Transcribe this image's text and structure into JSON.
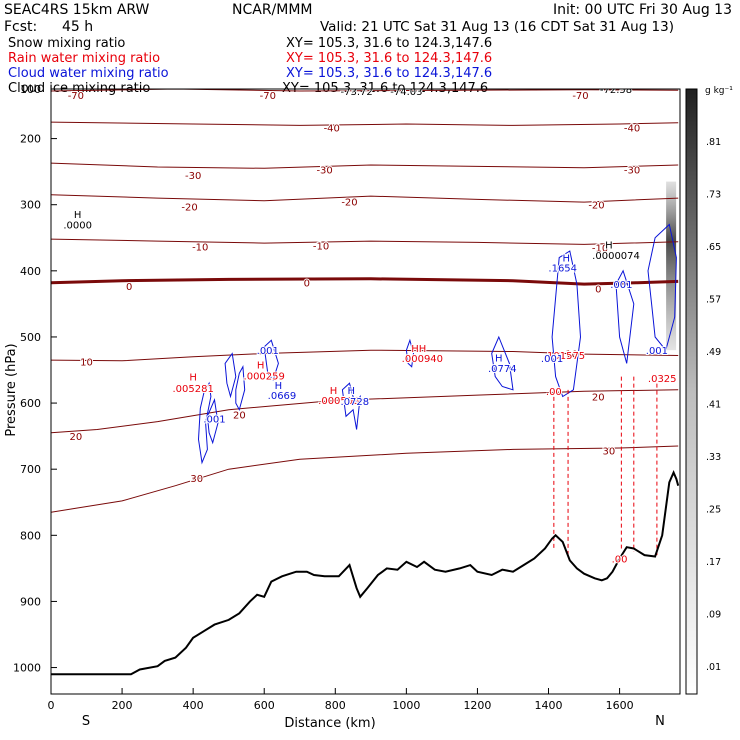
{
  "header": {
    "title": "SEAC4RS 15km ARW",
    "center": "NCAR/MMM",
    "init": "Init: 00 UTC Fri 30 Aug 13",
    "fcst_label": "Fcst:",
    "fcst_value": "45 h",
    "valid": "Valid: 21 UTC Sat 31 Aug 13 (16 CDT Sat 31 Aug 13)",
    "fields": [
      {
        "name": "Snow mixing ratio",
        "xy": "XY= 105.3, 31.6 to 124.3,147.6",
        "color": "#000000"
      },
      {
        "name": "Rain water mixing ratio",
        "xy": "XY= 105.3, 31.6 to 124.3,147.6",
        "color": "#e8000b"
      },
      {
        "name": "Cloud water mixing ratio",
        "xy": "XY= 105.3, 31.6 to 124.3,147.6",
        "color": "#0a14d8"
      },
      {
        "name": "Cloud ice mixing ratio",
        "xy": "XY= 105.3, 31.6 to 124.3,147.6",
        "color": "#000000"
      }
    ]
  },
  "chart_data": {
    "type": "contour",
    "xlabel": "Distance (km)",
    "ylabel": "Pressure (hPa)",
    "xlim": [
      0,
      1770
    ],
    "ylim": [
      1040,
      125
    ],
    "xticks": [
      0,
      200,
      400,
      600,
      800,
      1000,
      1200,
      1400,
      1600
    ],
    "yticks": [
      100,
      200,
      300,
      400,
      500,
      600,
      700,
      800,
      900,
      1000
    ],
    "end_labels": {
      "left": "S",
      "right": "N"
    },
    "colorbar": {
      "unit": "g kg⁻¹",
      "ticks": [
        ".81",
        ".73",
        ".65",
        ".57",
        ".49",
        ".41",
        ".33",
        ".25",
        ".17",
        ".09",
        ".01"
      ]
    },
    "terrain": [
      [
        0,
        1010
      ],
      [
        225,
        1010
      ],
      [
        250,
        1003
      ],
      [
        300,
        998
      ],
      [
        320,
        990
      ],
      [
        350,
        985
      ],
      [
        380,
        970
      ],
      [
        400,
        955
      ],
      [
        430,
        945
      ],
      [
        460,
        935
      ],
      [
        500,
        928
      ],
      [
        530,
        918
      ],
      [
        560,
        900
      ],
      [
        580,
        890
      ],
      [
        600,
        893
      ],
      [
        620,
        870
      ],
      [
        650,
        862
      ],
      [
        690,
        855
      ],
      [
        720,
        855
      ],
      [
        740,
        860
      ],
      [
        770,
        862
      ],
      [
        810,
        862
      ],
      [
        840,
        845
      ],
      [
        860,
        880
      ],
      [
        870,
        893
      ],
      [
        890,
        880
      ],
      [
        920,
        860
      ],
      [
        945,
        850
      ],
      [
        975,
        852
      ],
      [
        1000,
        840
      ],
      [
        1030,
        848
      ],
      [
        1050,
        840
      ],
      [
        1080,
        852
      ],
      [
        1110,
        855
      ],
      [
        1150,
        850
      ],
      [
        1180,
        845
      ],
      [
        1200,
        855
      ],
      [
        1240,
        860
      ],
      [
        1270,
        852
      ],
      [
        1300,
        855
      ],
      [
        1330,
        845
      ],
      [
        1360,
        835
      ],
      [
        1390,
        820
      ],
      [
        1410,
        805
      ],
      [
        1420,
        800
      ],
      [
        1440,
        810
      ],
      [
        1460,
        838
      ],
      [
        1480,
        850
      ],
      [
        1500,
        858
      ],
      [
        1530,
        865
      ],
      [
        1550,
        868
      ],
      [
        1565,
        865
      ],
      [
        1580,
        855
      ],
      [
        1600,
        835
      ],
      [
        1620,
        818
      ],
      [
        1640,
        820
      ],
      [
        1670,
        830
      ],
      [
        1700,
        832
      ],
      [
        1720,
        800
      ],
      [
        1740,
        720
      ],
      [
        1752,
        705
      ],
      [
        1760,
        715
      ],
      [
        1765,
        725
      ]
    ],
    "isotherms": [
      {
        "label": "-70",
        "pts": [
          [
            0,
            128
          ],
          [
            350,
            125
          ],
          [
            700,
            128
          ],
          [
            1150,
            127
          ],
          [
            1500,
            126
          ],
          [
            1765,
            127
          ]
        ]
      },
      {
        "label": "-40",
        "pts": [
          [
            0,
            175
          ],
          [
            400,
            178
          ],
          [
            700,
            180
          ],
          [
            1000,
            178
          ],
          [
            1300,
            180
          ],
          [
            1600,
            178
          ],
          [
            1765,
            176
          ]
        ]
      },
      {
        "label": "-30",
        "pts": [
          [
            0,
            237
          ],
          [
            300,
            243
          ],
          [
            600,
            245
          ],
          [
            900,
            240
          ],
          [
            1200,
            242
          ],
          [
            1500,
            244
          ],
          [
            1765,
            240
          ]
        ]
      },
      {
        "label": "-20",
        "pts": [
          [
            0,
            285
          ],
          [
            300,
            290
          ],
          [
            600,
            294
          ],
          [
            900,
            287
          ],
          [
            1200,
            292
          ],
          [
            1500,
            296
          ],
          [
            1765,
            290
          ]
        ]
      },
      {
        "label": "-10",
        "pts": [
          [
            0,
            352
          ],
          [
            300,
            355
          ],
          [
            600,
            358
          ],
          [
            900,
            355
          ],
          [
            1200,
            357
          ],
          [
            1500,
            360
          ],
          [
            1765,
            356
          ]
        ]
      },
      {
        "label": "0",
        "pts": [
          [
            0,
            418
          ],
          [
            200,
            415
          ],
          [
            500,
            413
          ],
          [
            900,
            412
          ],
          [
            1300,
            415
          ],
          [
            1500,
            420
          ],
          [
            1650,
            418
          ],
          [
            1765,
            416
          ]
        ],
        "bold": true
      },
      {
        "label": "10",
        "pts": [
          [
            0,
            535
          ],
          [
            200,
            536
          ],
          [
            400,
            530
          ],
          [
            600,
            525
          ],
          [
            900,
            520
          ],
          [
            1300,
            522
          ],
          [
            1500,
            526
          ],
          [
            1765,
            528
          ]
        ]
      },
      {
        "label": "20",
        "pts": [
          [
            0,
            645
          ],
          [
            130,
            640
          ],
          [
            300,
            628
          ],
          [
            500,
            610
          ],
          [
            800,
            596
          ],
          [
            1200,
            588
          ],
          [
            1500,
            582
          ],
          [
            1765,
            580
          ]
        ]
      },
      {
        "label": "30",
        "pts": [
          [
            0,
            765
          ],
          [
            200,
            748
          ],
          [
            350,
            725
          ],
          [
            500,
            700
          ],
          [
            700,
            685
          ],
          [
            1000,
            676
          ],
          [
            1300,
            670
          ],
          [
            1600,
            668
          ],
          [
            1765,
            665
          ]
        ]
      }
    ],
    "labels": [
      {
        "text": "-70",
        "x": 70,
        "p": 134,
        "color": "#8b0000"
      },
      {
        "text": "-70",
        "x": 610,
        "p": 134,
        "color": "#8b0000"
      },
      {
        "text": "-70",
        "x": 1490,
        "p": 134,
        "color": "#8b0000"
      },
      {
        "text": "-73.72",
        "x": 860,
        "p": 128,
        "color": "#000000"
      },
      {
        "text": "-74.03",
        "x": 1000,
        "p": 128,
        "color": "#000000"
      },
      {
        "text": "-72.58",
        "x": 1590,
        "p": 125,
        "color": "#000000"
      },
      {
        "text": "-40",
        "x": 790,
        "p": 183,
        "color": "#8b0000"
      },
      {
        "text": "-40",
        "x": 1635,
        "p": 183,
        "color": "#8b0000"
      },
      {
        "text": "-30",
        "x": 400,
        "p": 255,
        "color": "#8b0000"
      },
      {
        "text": "-30",
        "x": 770,
        "p": 247,
        "color": "#8b0000"
      },
      {
        "text": "-30",
        "x": 1635,
        "p": 247,
        "color": "#8b0000"
      },
      {
        "text": "-20",
        "x": 390,
        "p": 303,
        "color": "#8b0000"
      },
      {
        "text": "-20",
        "x": 840,
        "p": 295,
        "color": "#8b0000"
      },
      {
        "text": "-20",
        "x": 1535,
        "p": 300,
        "color": "#8b0000"
      },
      {
        "text": "-10",
        "x": 420,
        "p": 363,
        "color": "#8b0000"
      },
      {
        "text": "-10",
        "x": 760,
        "p": 362,
        "color": "#8b0000"
      },
      {
        "text": "-10",
        "x": 1545,
        "p": 365,
        "color": "#8b0000"
      },
      {
        "text": "0",
        "x": 220,
        "p": 423,
        "color": "#8b0000"
      },
      {
        "text": "0",
        "x": 720,
        "p": 418,
        "color": "#8b0000"
      },
      {
        "text": "0",
        "x": 1540,
        "p": 427,
        "color": "#8b0000"
      },
      {
        "text": "10",
        "x": 100,
        "p": 537,
        "color": "#8b0000"
      },
      {
        "text": "10",
        "x": 1465,
        "p": 525,
        "color": "#8b0000"
      },
      {
        "text": "20",
        "x": 530,
        "p": 617,
        "color": "#8b0000"
      },
      {
        "text": "20",
        "x": 1540,
        "p": 590,
        "color": "#8b0000"
      },
      {
        "text": "20",
        "x": 70,
        "p": 650,
        "color": "#8b0000"
      },
      {
        "text": "30",
        "x": 410,
        "p": 713,
        "color": "#8b0000"
      },
      {
        "text": "30",
        "x": 1570,
        "p": 672,
        "color": "#8b0000"
      },
      {
        "text": "H",
        "x": 75,
        "p": 314,
        "color": "#000000"
      },
      {
        "text": ".0000",
        "x": 75,
        "p": 330,
        "color": "#000000"
      },
      {
        "text": "H",
        "x": 1570,
        "p": 360,
        "color": "#000000"
      },
      {
        "text": ".0000074",
        "x": 1590,
        "p": 376,
        "color": "#000000"
      },
      {
        "text": "H",
        "x": 400,
        "p": 560,
        "color": "#e8000b"
      },
      {
        "text": ".005281",
        "x": 400,
        "p": 577,
        "color": "#e8000b"
      },
      {
        "text": "H",
        "x": 590,
        "p": 542,
        "color": "#e8000b"
      },
      {
        "text": ".000259",
        "x": 600,
        "p": 558,
        "color": "#e8000b"
      },
      {
        "text": "H",
        "x": 795,
        "p": 580,
        "color": "#e8000b"
      },
      {
        "text": ".000508",
        "x": 810,
        "p": 595,
        "color": "#e8000b"
      },
      {
        "text": "HH",
        "x": 1035,
        "p": 517,
        "color": "#e8000b"
      },
      {
        "text": ".000940",
        "x": 1045,
        "p": 532,
        "color": "#e8000b"
      },
      {
        "text": ".101575",
        "x": 1445,
        "p": 527,
        "color": "#e8000b"
      },
      {
        "text": ".00",
        "x": 1415,
        "p": 582,
        "color": "#e8000b"
      },
      {
        "text": ".00",
        "x": 1600,
        "p": 835,
        "color": "#e8000b"
      },
      {
        "text": ".0325",
        "x": 1720,
        "p": 562,
        "color": "#e8000b"
      },
      {
        "text": "H",
        "x": 1450,
        "p": 380,
        "color": "#0a14d8"
      },
      {
        "text": ".1654",
        "x": 1440,
        "p": 395,
        "color": "#0a14d8"
      },
      {
        "text": ".001",
        "x": 1605,
        "p": 420,
        "color": "#0a14d8"
      },
      {
        "text": ".001",
        "x": 610,
        "p": 520,
        "color": "#0a14d8"
      },
      {
        "text": "H",
        "x": 640,
        "p": 573,
        "color": "#0a14d8"
      },
      {
        "text": ".0669",
        "x": 650,
        "p": 588,
        "color": "#0a14d8"
      },
      {
        "text": "H",
        "x": 845,
        "p": 580,
        "color": "#0a14d8"
      },
      {
        "text": ".0728",
        "x": 855,
        "p": 597,
        "color": "#0a14d8"
      },
      {
        "text": "H",
        "x": 1260,
        "p": 531,
        "color": "#0a14d8"
      },
      {
        "text": ".0774",
        "x": 1270,
        "p": 547,
        "color": "#0a14d8"
      },
      {
        "text": ".001",
        "x": 1410,
        "p": 532,
        "color": "#0a14d8"
      },
      {
        "text": ".001",
        "x": 460,
        "p": 623,
        "color": "#0a14d8"
      },
      {
        "text": ".001",
        "x": 1705,
        "p": 520,
        "color": "#0a14d8"
      }
    ],
    "cloud_water_contours": [
      [
        [
          420,
          608
        ],
        [
          430,
          585
        ],
        [
          445,
          570
        ],
        [
          450,
          590
        ],
        [
          435,
          630
        ],
        [
          440,
          670
        ],
        [
          425,
          690
        ],
        [
          415,
          655
        ]
      ],
      [
        [
          520,
          580
        ],
        [
          530,
          555
        ],
        [
          540,
          545
        ],
        [
          545,
          580
        ],
        [
          530,
          610
        ],
        [
          520,
          600
        ]
      ],
      [
        [
          440,
          620
        ],
        [
          460,
          595
        ],
        [
          470,
          630
        ],
        [
          455,
          660
        ],
        [
          445,
          645
        ]
      ],
      [
        [
          490,
          540
        ],
        [
          510,
          525
        ],
        [
          520,
          560
        ],
        [
          505,
          590
        ],
        [
          495,
          570
        ]
      ],
      [
        [
          600,
          515
        ],
        [
          620,
          505
        ],
        [
          640,
          540
        ],
        [
          625,
          565
        ],
        [
          610,
          555
        ]
      ],
      [
        [
          820,
          580
        ],
        [
          840,
          570
        ],
        [
          855,
          600
        ],
        [
          870,
          590
        ],
        [
          860,
          640
        ],
        [
          850,
          610
        ],
        [
          830,
          620
        ]
      ],
      [
        [
          1000,
          520
        ],
        [
          1010,
          505
        ],
        [
          1020,
          525
        ],
        [
          1015,
          545
        ],
        [
          1005,
          540
        ]
      ],
      [
        [
          1240,
          525
        ],
        [
          1260,
          500
        ],
        [
          1290,
          540
        ],
        [
          1300,
          580
        ],
        [
          1270,
          575
        ],
        [
          1250,
          560
        ]
      ],
      [
        [
          1410,
          500
        ],
        [
          1430,
          380
        ],
        [
          1460,
          370
        ],
        [
          1480,
          420
        ],
        [
          1490,
          500
        ],
        [
          1470,
          580
        ],
        [
          1440,
          590
        ],
        [
          1420,
          560
        ]
      ],
      [
        [
          1590,
          420
        ],
        [
          1610,
          400
        ],
        [
          1640,
          450
        ],
        [
          1620,
          540
        ],
        [
          1600,
          500
        ]
      ],
      [
        [
          1680,
          400
        ],
        [
          1700,
          350
        ],
        [
          1740,
          330
        ],
        [
          1760,
          380
        ],
        [
          1755,
          470
        ],
        [
          1730,
          520
        ],
        [
          1700,
          500
        ],
        [
          1690,
          450
        ]
      ]
    ],
    "rain_columns": [
      [
        1415,
        580,
        820
      ],
      [
        1455,
        580,
        830
      ],
      [
        1605,
        560,
        820
      ],
      [
        1640,
        560,
        825
      ],
      [
        1705,
        560,
        830
      ]
    ],
    "ice_shading": {
      "x": 1745,
      "p_top": 265,
      "p_bottom": 520
    }
  }
}
